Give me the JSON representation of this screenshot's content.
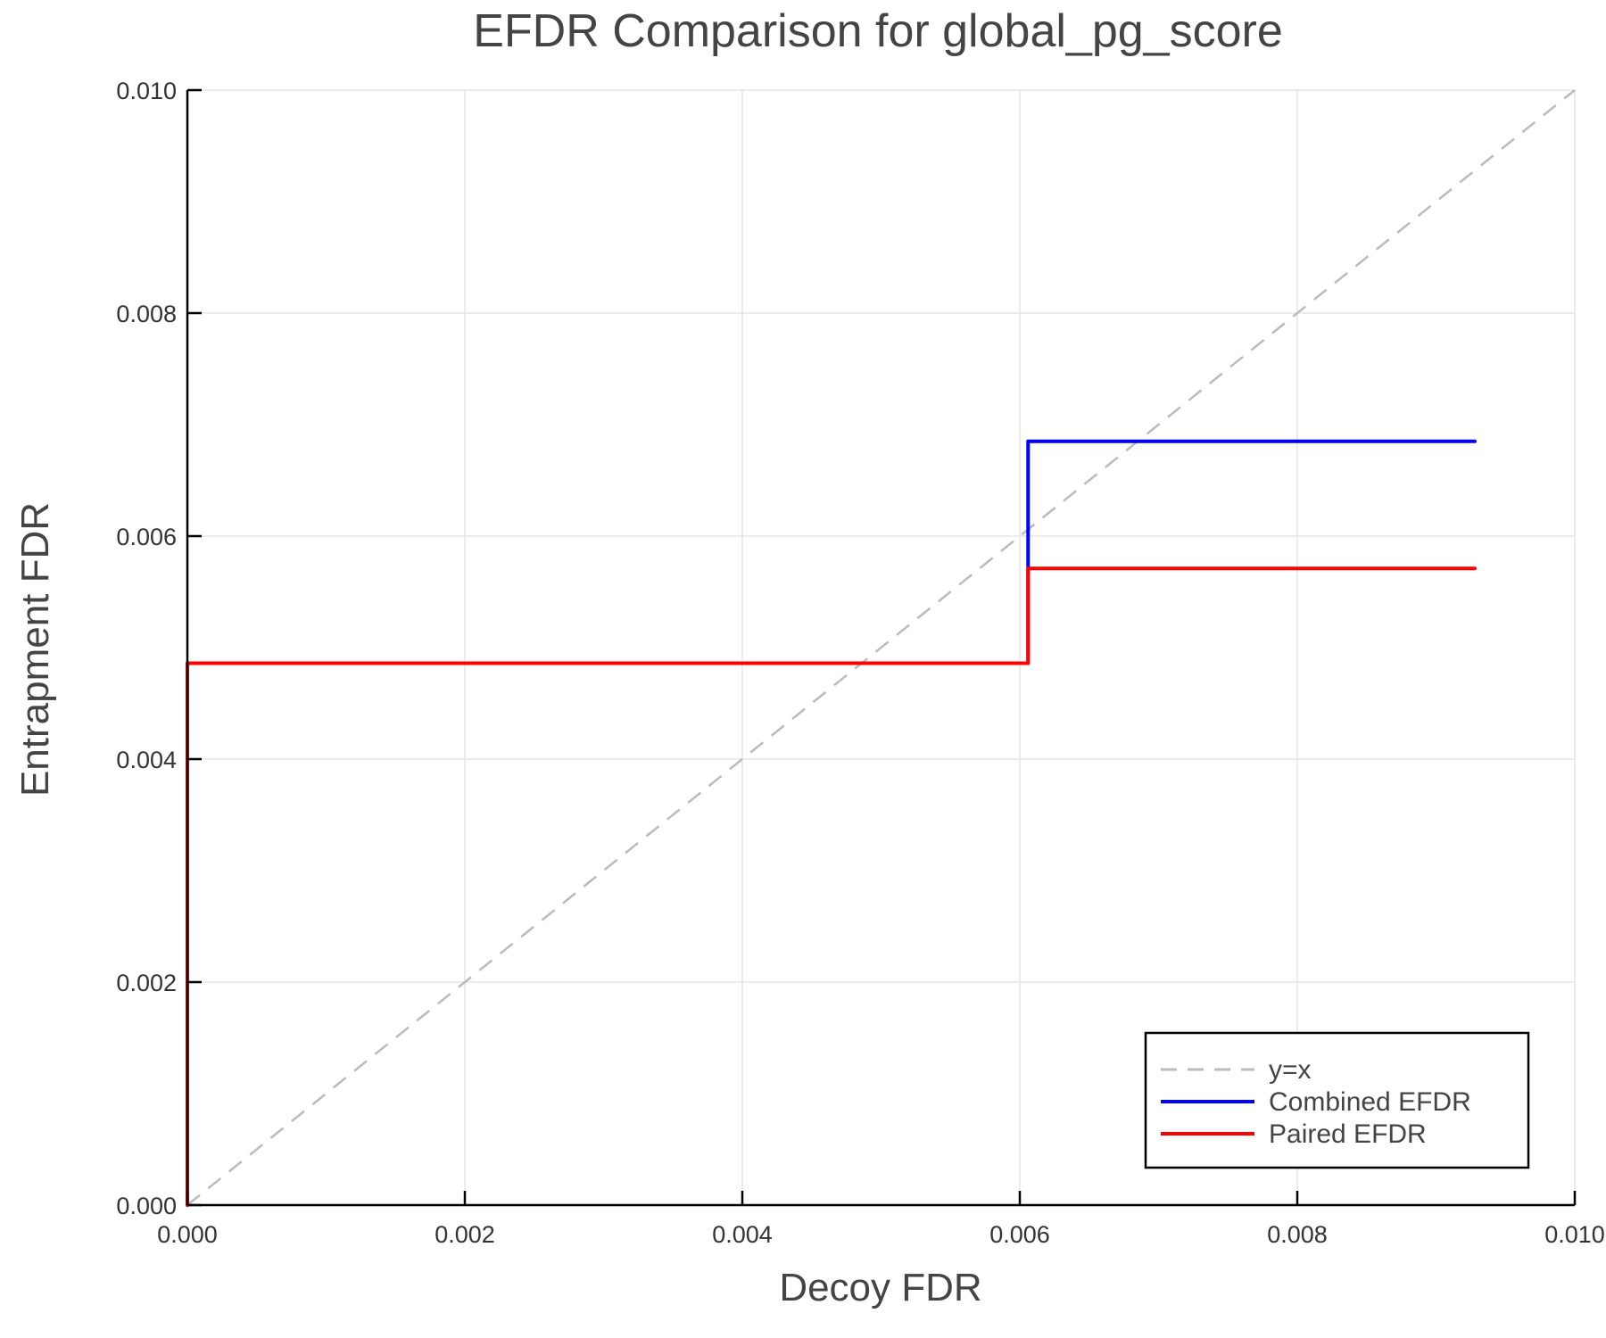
{
  "chart_data": {
    "type": "line",
    "title": "EFDR Comparison for global_pg_score",
    "xlabel": "Decoy FDR",
    "ylabel": "Entrapment FDR",
    "xlim": [
      0,
      0.01
    ],
    "ylim": [
      0,
      0.01
    ],
    "xticks": [
      "0.000",
      "0.002",
      "0.004",
      "0.006",
      "0.008",
      "0.010"
    ],
    "yticks": [
      "0.000",
      "0.002",
      "0.004",
      "0.006",
      "0.008",
      "0.010"
    ],
    "grid": true,
    "legend_position": "bottom-right",
    "series": [
      {
        "name": "y=x",
        "color": "#bbbbbb",
        "dash": true,
        "x": [
          0,
          0.01
        ],
        "y": [
          0,
          0.01
        ]
      },
      {
        "name": "Combined EFDR",
        "color": "#0000ff",
        "step": true,
        "x": [
          0,
          0,
          0.00606,
          0.00606,
          0.00928
        ],
        "y": [
          0,
          0.00486,
          0.00486,
          0.00685,
          0.00685
        ]
      },
      {
        "name": "Paired EFDR",
        "color": "#ff0000",
        "step": true,
        "x": [
          0,
          0,
          0.00606,
          0.00606,
          0.00928
        ],
        "y": [
          0,
          0.00486,
          0.00486,
          0.00571,
          0.00571
        ]
      }
    ]
  }
}
